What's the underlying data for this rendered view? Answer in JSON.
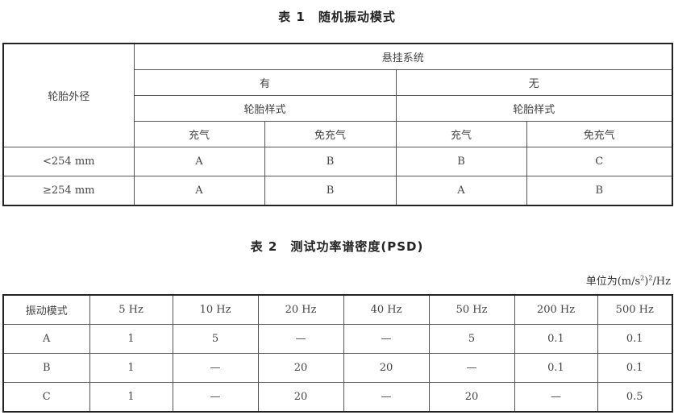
{
  "table1": {
    "title": "表 1　随机振动模式",
    "row_header": "轮胎外径",
    "suspension_header": "悬挂系统",
    "suspension_options": [
      "有",
      "无"
    ],
    "tire_type_header": "轮胎样式",
    "tire_types": [
      "充气",
      "免充气",
      "充气",
      "免充气"
    ],
    "rows": [
      {
        "label": "<254 mm",
        "values": [
          "A",
          "B",
          "B",
          "C"
        ]
      },
      {
        "label": "≥254 mm",
        "values": [
          "A",
          "B",
          "A",
          "B"
        ]
      }
    ]
  },
  "table2": {
    "title": "表 2　测试功率谱密度(PSD)",
    "unit_prefix": "单位为(m/s",
    "unit_sup": "2",
    "unit_mid": ")",
    "unit_sup2": "2",
    "unit_suffix": "/Hz",
    "headers": [
      "振动模式",
      "5 Hz",
      "10 Hz",
      "20 Hz",
      "40 Hz",
      "50 Hz",
      "200 Hz",
      "500 Hz"
    ],
    "rows": [
      [
        "A",
        "1",
        "5",
        "—",
        "—",
        "5",
        "0.1",
        "0.1"
      ],
      [
        "B",
        "1",
        "—",
        "20",
        "20",
        "—",
        "0.1",
        "0.1"
      ],
      [
        "C",
        "1",
        "—",
        "20",
        "—",
        "20",
        "—",
        "0.5"
      ]
    ]
  }
}
